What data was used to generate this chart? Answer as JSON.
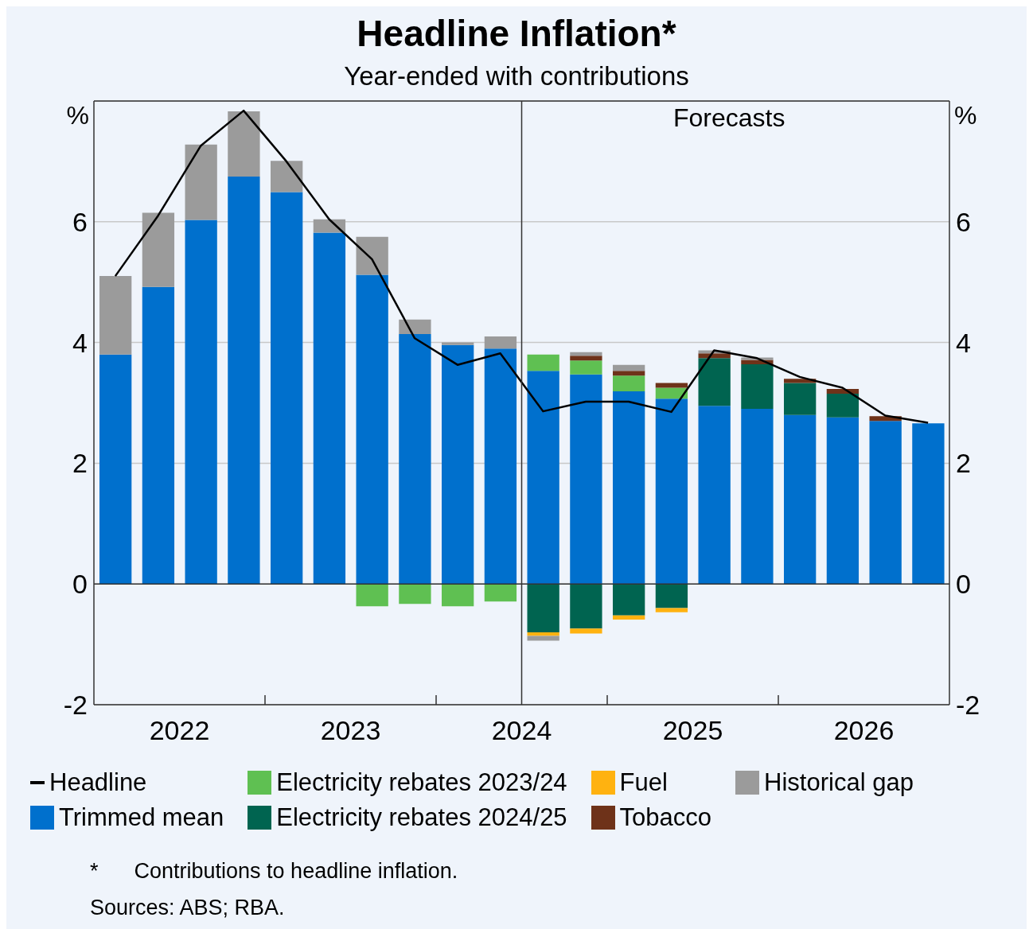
{
  "chart_data": {
    "type": "bar",
    "title": "Headline Inflation*",
    "subtitle": "Year-ended with contributions",
    "ylabel": "%",
    "y2label": "%",
    "stacked": true,
    "grid": "y",
    "legend": "bottom",
    "x": [
      2022.125,
      2022.375,
      2022.625,
      2022.875,
      2023.125,
      2023.375,
      2023.625,
      2023.875,
      2024.125,
      2024.375,
      2024.625,
      2024.875,
      2025.125,
      2025.375,
      2025.625,
      2025.875,
      2026.125,
      2026.375,
      2026.625,
      2026.875
    ],
    "xlim": [
      2022,
      2027
    ],
    "xticks": [
      {
        "value": 2022.5,
        "label": "2022"
      },
      {
        "value": 2023,
        "label": null
      },
      {
        "value": 2023.5,
        "label": "2023"
      },
      {
        "value": 2024,
        "label": null
      },
      {
        "value": 2024.5,
        "label": "2024"
      },
      {
        "value": 2025,
        "label": null
      },
      {
        "value": 2025.5,
        "label": "2025"
      },
      {
        "value": 2026,
        "label": null
      },
      {
        "value": 2026.5,
        "label": "2026"
      }
    ],
    "ylim": [
      -2,
      8
    ],
    "yticks": [
      -2,
      0,
      2,
      4,
      6
    ],
    "y2lim": [
      -2,
      8
    ],
    "y2ticks": [
      -2,
      0,
      2,
      4,
      6
    ],
    "ref_lines": [
      {
        "axis": "x",
        "value": 2024.5,
        "label": null,
        "color": "#333333"
      }
    ],
    "series": [
      {
        "name": "Headline",
        "type": "line",
        "color": "#000000",
        "values": [
          5.1,
          6.1,
          7.26,
          7.84,
          7.0,
          6.04,
          5.38,
          4.07,
          3.63,
          3.82,
          2.86,
          3.02,
          3.02,
          2.85,
          3.87,
          3.74,
          3.43,
          3.25,
          2.79,
          2.67
        ]
      },
      {
        "name": "Trimmed mean",
        "color": "#0070cd",
        "values": [
          3.8,
          4.92,
          6.03,
          6.75,
          6.49,
          5.82,
          5.12,
          4.14,
          3.96,
          3.9,
          3.53,
          3.47,
          3.19,
          3.07,
          2.95,
          2.9,
          2.8,
          2.76,
          2.7,
          2.66
        ]
      },
      {
        "name": "Electricity rebates 2023/24",
        "color": "#5fc052",
        "values": [
          null,
          null,
          null,
          null,
          null,
          null,
          -0.37,
          -0.33,
          -0.37,
          -0.29,
          0.27,
          0.23,
          0.26,
          0.18,
          null,
          null,
          null,
          null,
          null,
          null
        ]
      },
      {
        "name": "Electricity rebates 2024/25",
        "color": "#006450",
        "values": [
          null,
          null,
          null,
          null,
          null,
          null,
          null,
          null,
          null,
          null,
          -0.8,
          -0.74,
          -0.52,
          -0.4,
          0.79,
          0.74,
          0.53,
          0.39,
          null,
          null
        ]
      },
      {
        "name": "Fuel",
        "color": "#ffb210",
        "values": [
          null,
          null,
          null,
          null,
          null,
          null,
          null,
          null,
          null,
          null,
          -0.06,
          -0.08,
          -0.07,
          -0.07,
          null,
          null,
          null,
          null,
          null,
          null
        ]
      },
      {
        "name": "Tobacco",
        "color": "#6e3219",
        "values": [
          null,
          null,
          null,
          null,
          null,
          null,
          null,
          null,
          null,
          null,
          null,
          0.08,
          0.08,
          0.08,
          0.08,
          0.07,
          0.07,
          0.08,
          0.08,
          null
        ]
      },
      {
        "name": "Historical gap",
        "color": "#9b9b9b",
        "values": [
          1.3,
          1.23,
          1.25,
          1.08,
          0.52,
          0.22,
          0.63,
          0.24,
          0.04,
          0.2,
          -0.08,
          0.06,
          0.1,
          null,
          0.05,
          0.04,
          null,
          null,
          null,
          null
        ]
      }
    ],
    "annotations": [
      "Forecasts",
      "*      Contributions to headline inflation.",
      "Sources: ABS; RBA."
    ]
  }
}
